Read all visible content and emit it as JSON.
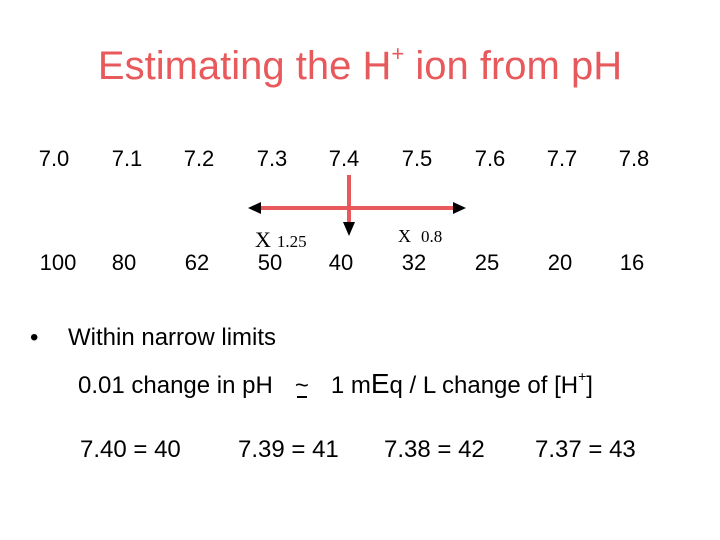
{
  "title": {
    "main": "Estimating the H",
    "sup": "+",
    "rest": " ion from pH"
  },
  "ph_values": [
    "7.0",
    "7.1",
    "7.2",
    "7.3",
    "7.4",
    "7.5",
    "7.6",
    "7.7",
    "7.8"
  ],
  "h_values": [
    "100",
    "80",
    "62",
    "50",
    "40",
    "32",
    "25",
    "20",
    "16"
  ],
  "factor_left": {
    "x": "X",
    "value": "1.25"
  },
  "factor_right": {
    "x": "X",
    "value": "0.8"
  },
  "bullet": {
    "symbol": "•",
    "text": "Within narrow limits"
  },
  "rule": {
    "left": "0.01 change in pH",
    "approx": "~",
    "right_a": "1 m",
    "right_E": "E",
    "right_b": "q / L change of [H",
    "right_sup": "+",
    "right_c": "]"
  },
  "examples": [
    "7.40  =  40",
    "7.39 = 41",
    "7.38 = 42",
    "7.37 = 43"
  ]
}
